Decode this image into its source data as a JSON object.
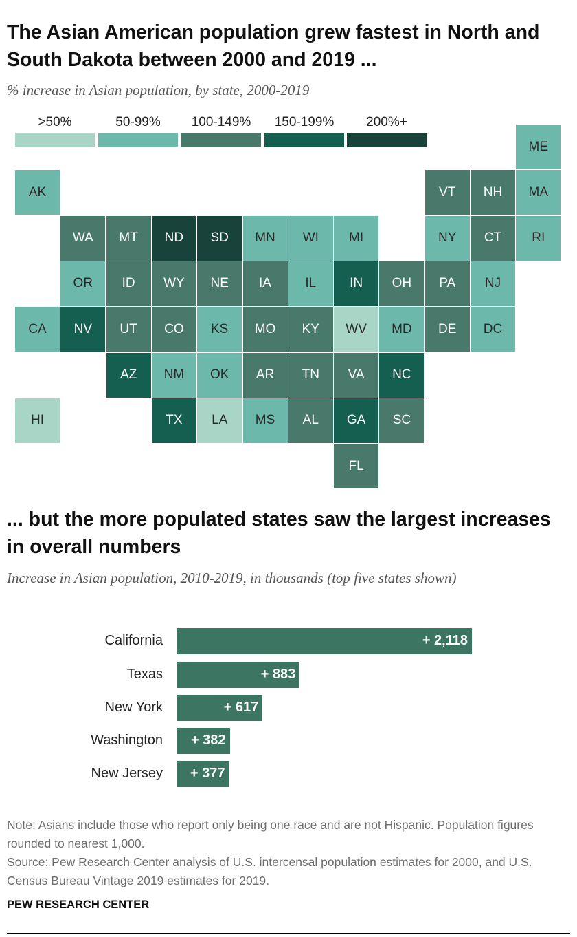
{
  "title1": "The Asian American population grew fastest in North and South Dakota between 2000 and 2019 ...",
  "subtitle1": "% increase in Asian population, by state, 2000-2019",
  "title2": "... but the more populated states saw the largest increases in overall numbers",
  "subtitle2": "Increase in Asian population, 2010-2019, in thousands (top five states shown)",
  "note": "Note: Asians include those who report only being one race and are not Hispanic. Population figures rounded to nearest 1,000.",
  "source": "Source: Pew Research Center analysis of U.S. intercensal population estimates for 2000, and U.S. Census Bureau Vintage 2019 estimates for 2019.",
  "logo": "PEW RESEARCH CENTER",
  "colors": {
    "c1": "#a8d5c6",
    "c2": "#6cb8aa",
    "c3": "#48796b",
    "c4": "#145f50",
    "c5": "#18433a",
    "bar": "#3d7563"
  },
  "chart_data": [
    {
      "type": "heatmap",
      "legend": [
        {
          "label": ">50%",
          "color": "#a8d5c6"
        },
        {
          "label": "50-99%",
          "color": "#6cb8aa"
        },
        {
          "label": "100-149%",
          "color": "#48796b"
        },
        {
          "label": "150-199%",
          "color": "#145f50"
        },
        {
          "label": "200%+",
          "color": "#18433a"
        }
      ],
      "states": [
        {
          "abbr": "ME",
          "row": 0,
          "col": 11,
          "bin": 1
        },
        {
          "abbr": "AK",
          "row": 1,
          "col": 0,
          "bin": 1
        },
        {
          "abbr": "VT",
          "row": 1,
          "col": 9,
          "bin": 2
        },
        {
          "abbr": "NH",
          "row": 1,
          "col": 10,
          "bin": 2
        },
        {
          "abbr": "MA",
          "row": 1,
          "col": 11,
          "bin": 1
        },
        {
          "abbr": "WA",
          "row": 2,
          "col": 1,
          "bin": 2
        },
        {
          "abbr": "MT",
          "row": 2,
          "col": 2,
          "bin": 2
        },
        {
          "abbr": "ND",
          "row": 2,
          "col": 3,
          "bin": 4
        },
        {
          "abbr": "SD",
          "row": 2,
          "col": 4,
          "bin": 4
        },
        {
          "abbr": "MN",
          "row": 2,
          "col": 5,
          "bin": 1
        },
        {
          "abbr": "WI",
          "row": 2,
          "col": 6,
          "bin": 1
        },
        {
          "abbr": "MI",
          "row": 2,
          "col": 7,
          "bin": 1
        },
        {
          "abbr": "NY",
          "row": 2,
          "col": 9,
          "bin": 1
        },
        {
          "abbr": "CT",
          "row": 2,
          "col": 10,
          "bin": 2
        },
        {
          "abbr": "RI",
          "row": 2,
          "col": 11,
          "bin": 1
        },
        {
          "abbr": "OR",
          "row": 3,
          "col": 1,
          "bin": 1
        },
        {
          "abbr": "ID",
          "row": 3,
          "col": 2,
          "bin": 2
        },
        {
          "abbr": "WY",
          "row": 3,
          "col": 3,
          "bin": 2
        },
        {
          "abbr": "NE",
          "row": 3,
          "col": 4,
          "bin": 2
        },
        {
          "abbr": "IA",
          "row": 3,
          "col": 5,
          "bin": 2
        },
        {
          "abbr": "IL",
          "row": 3,
          "col": 6,
          "bin": 1
        },
        {
          "abbr": "IN",
          "row": 3,
          "col": 7,
          "bin": 3
        },
        {
          "abbr": "OH",
          "row": 3,
          "col": 8,
          "bin": 2
        },
        {
          "abbr": "PA",
          "row": 3,
          "col": 9,
          "bin": 2
        },
        {
          "abbr": "NJ",
          "row": 3,
          "col": 10,
          "bin": 1
        },
        {
          "abbr": "CA",
          "row": 4,
          "col": 0,
          "bin": 1
        },
        {
          "abbr": "NV",
          "row": 4,
          "col": 1,
          "bin": 3
        },
        {
          "abbr": "UT",
          "row": 4,
          "col": 2,
          "bin": 2
        },
        {
          "abbr": "CO",
          "row": 4,
          "col": 3,
          "bin": 2
        },
        {
          "abbr": "KS",
          "row": 4,
          "col": 4,
          "bin": 1
        },
        {
          "abbr": "MO",
          "row": 4,
          "col": 5,
          "bin": 2
        },
        {
          "abbr": "KY",
          "row": 4,
          "col": 6,
          "bin": 2
        },
        {
          "abbr": "WV",
          "row": 4,
          "col": 7,
          "bin": 0
        },
        {
          "abbr": "MD",
          "row": 4,
          "col": 8,
          "bin": 1
        },
        {
          "abbr": "DE",
          "row": 4,
          "col": 9,
          "bin": 2
        },
        {
          "abbr": "DC",
          "row": 4,
          "col": 10,
          "bin": 1
        },
        {
          "abbr": "AZ",
          "row": 5,
          "col": 2,
          "bin": 3
        },
        {
          "abbr": "NM",
          "row": 5,
          "col": 3,
          "bin": 1
        },
        {
          "abbr": "OK",
          "row": 5,
          "col": 4,
          "bin": 1
        },
        {
          "abbr": "AR",
          "row": 5,
          "col": 5,
          "bin": 2
        },
        {
          "abbr": "TN",
          "row": 5,
          "col": 6,
          "bin": 2
        },
        {
          "abbr": "VA",
          "row": 5,
          "col": 7,
          "bin": 2
        },
        {
          "abbr": "NC",
          "row": 5,
          "col": 8,
          "bin": 3
        },
        {
          "abbr": "HI",
          "row": 6,
          "col": 0,
          "bin": 0
        },
        {
          "abbr": "TX",
          "row": 6,
          "col": 3,
          "bin": 3
        },
        {
          "abbr": "LA",
          "row": 6,
          "col": 4,
          "bin": 0
        },
        {
          "abbr": "MS",
          "row": 6,
          "col": 5,
          "bin": 1
        },
        {
          "abbr": "AL",
          "row": 6,
          "col": 6,
          "bin": 2
        },
        {
          "abbr": "GA",
          "row": 6,
          "col": 7,
          "bin": 3
        },
        {
          "abbr": "SC",
          "row": 6,
          "col": 8,
          "bin": 2
        },
        {
          "abbr": "FL",
          "row": 7,
          "col": 7,
          "bin": 2
        }
      ]
    },
    {
      "type": "bar",
      "orientation": "horizontal",
      "categories": [
        "California",
        "Texas",
        "New York",
        "Washington",
        "New Jersey"
      ],
      "values": [
        2118,
        883,
        617,
        382,
        377
      ],
      "value_labels": [
        "+ 2,118",
        "+ 883",
        "+ 617",
        "+ 382",
        "+ 377"
      ],
      "xlim": [
        0,
        2118
      ]
    }
  ]
}
